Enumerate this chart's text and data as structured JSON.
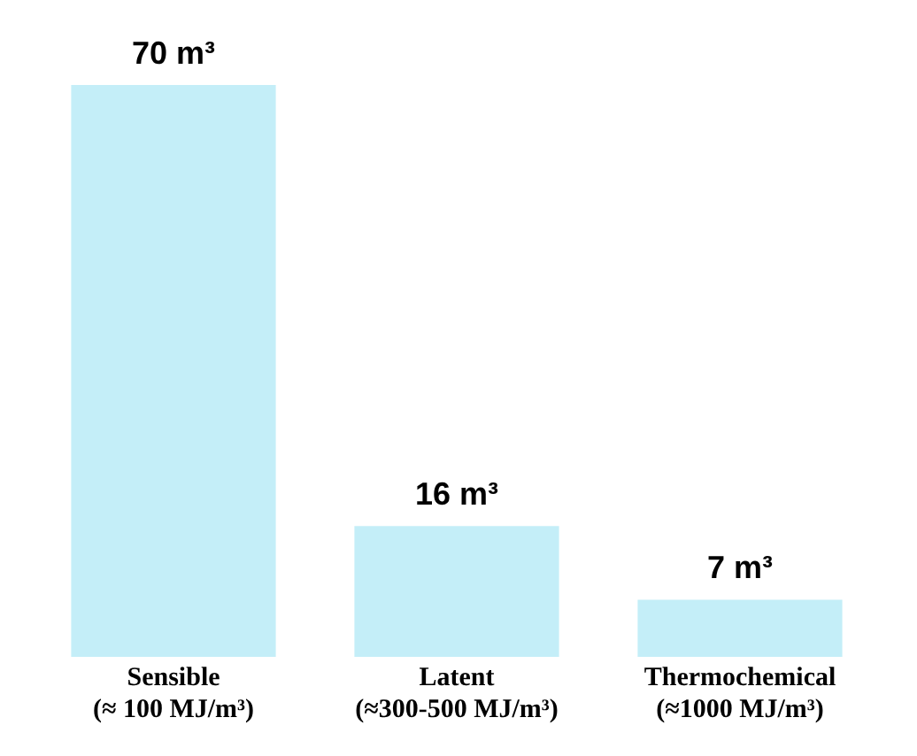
{
  "chart_data": {
    "type": "bar",
    "categories": [
      "Sensible\n(≈ 100 MJ/m³)",
      "Latent\n(≈300-500 MJ/m³)",
      "Thermochemical\n(≈1000 MJ/m³)"
    ],
    "values": [
      70,
      16,
      7
    ],
    "value_labels": [
      "70 m³",
      "16 m³",
      "7 m³"
    ],
    "color": "#c4eef8",
    "grid": false,
    "legend": false
  }
}
